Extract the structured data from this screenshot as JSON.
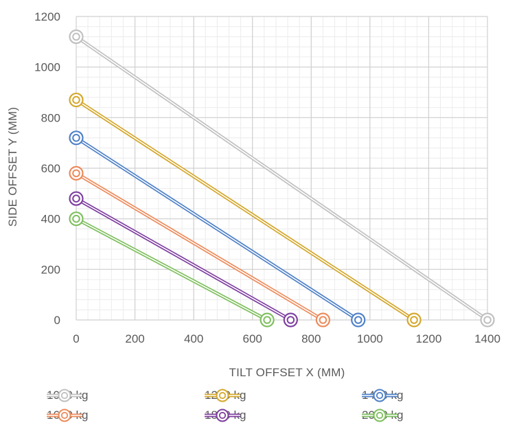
{
  "chart_data": {
    "type": "scatter",
    "xlabel": "TILT OFFSET X  (MM)",
    "ylabel": "SIDE OFFSET Y  (MM)",
    "xlim": [
      0,
      1400
    ],
    "ylim": [
      0,
      1200
    ],
    "x_ticks": [
      0,
      200,
      400,
      600,
      800,
      1000,
      1200,
      1400
    ],
    "y_ticks": [
      0,
      200,
      400,
      600,
      800,
      1000,
      1200
    ],
    "grid": true,
    "minor_grid": true,
    "legend_position": "bottom",
    "markers": "double-circle",
    "series": [
      {
        "name": "1000 kg",
        "color": "#c0c0c0",
        "points": [
          [
            0,
            1120
          ],
          [
            1400,
            0
          ]
        ]
      },
      {
        "name": "1200 kg",
        "color": "#d4a72c",
        "points": [
          [
            0,
            870
          ],
          [
            1150,
            0
          ]
        ]
      },
      {
        "name": "1400 kg",
        "color": "#4f81c7",
        "points": [
          [
            0,
            720
          ],
          [
            960,
            0
          ]
        ]
      },
      {
        "name": "1600 kg",
        "color": "#ed8b5b",
        "points": [
          [
            0,
            580
          ],
          [
            840,
            0
          ]
        ]
      },
      {
        "name": "1800 kg",
        "color": "#7f3fa0",
        "points": [
          [
            0,
            480
          ],
          [
            730,
            0
          ]
        ]
      },
      {
        "name": "2000 kg",
        "color": "#7fbf5f",
        "points": [
          [
            0,
            400
          ],
          [
            650,
            0
          ]
        ]
      }
    ]
  }
}
